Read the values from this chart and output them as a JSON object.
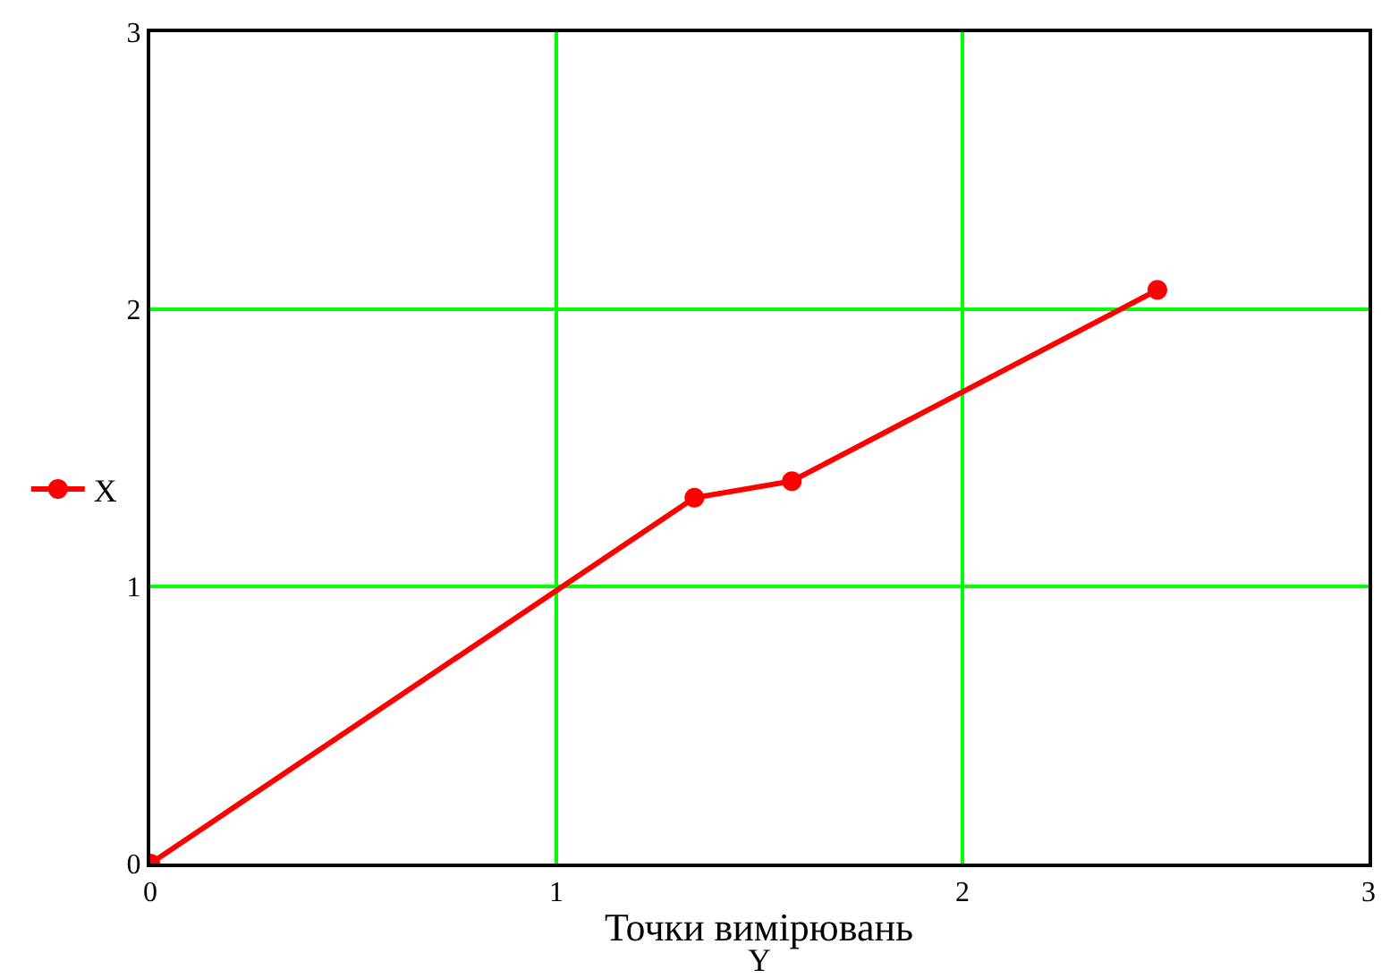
{
  "chart_data": {
    "type": "line",
    "xlabel": "Y",
    "annotations": [
      "Точки вимірювань"
    ],
    "x": [
      0,
      1.34,
      1.58,
      2.48
    ],
    "series": [
      {
        "name": "X",
        "color": "#ff0000",
        "values": [
          0,
          1.32,
          1.38,
          2.07
        ]
      }
    ],
    "xlim": [
      0,
      3
    ],
    "ylim": [
      0,
      3
    ],
    "xticks": [
      0,
      1,
      2,
      3
    ],
    "yticks": [
      0,
      1,
      2,
      3
    ],
    "grid": true,
    "legend": "left",
    "marker": "circle",
    "line_style": "solid"
  }
}
